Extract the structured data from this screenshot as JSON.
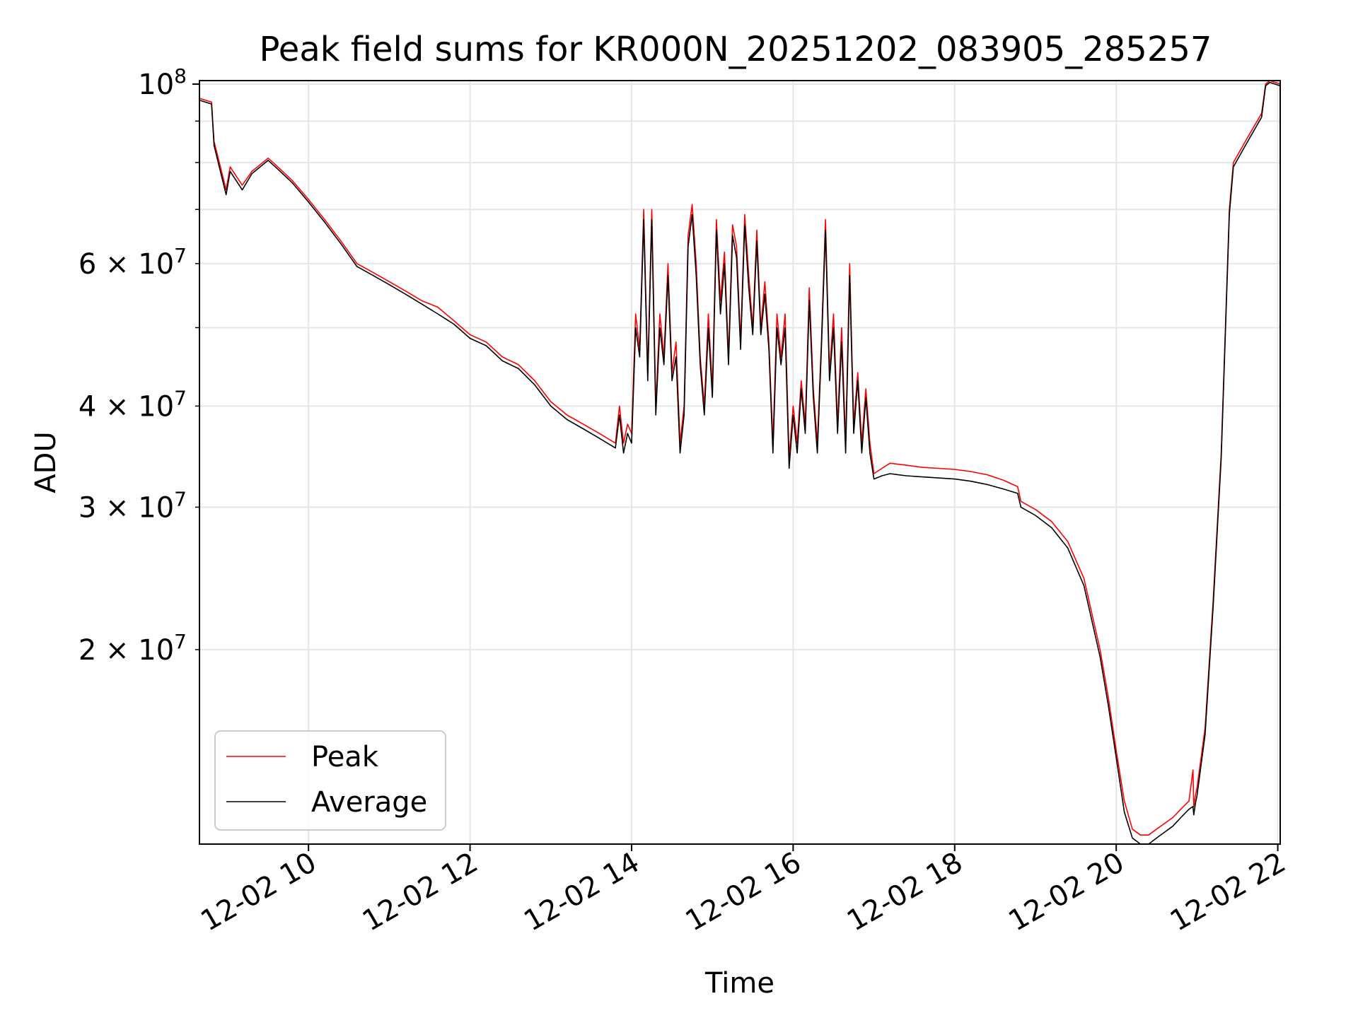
{
  "chart_data": {
    "type": "line",
    "title": "Peak field sums for KR000N_20251202_083905_285257",
    "xlabel": "Time",
    "ylabel": "ADU",
    "yscale": "log",
    "ylim": [
      11500000,
      101000000
    ],
    "xlim": [
      8.65,
      22.03
    ],
    "grid": true,
    "legend_position": "lower-left",
    "x_ticks": [
      {
        "value": 10,
        "label": "12-02 10"
      },
      {
        "value": 12,
        "label": "12-02 12"
      },
      {
        "value": 14,
        "label": "12-02 14"
      },
      {
        "value": 16,
        "label": "12-02 16"
      },
      {
        "value": 18,
        "label": "12-02 18"
      },
      {
        "value": 20,
        "label": "12-02 20"
      },
      {
        "value": 22,
        "label": "12-02 22"
      }
    ],
    "y_major_ticks": [
      {
        "value": 100000000,
        "base": "10",
        "exp": "8"
      }
    ],
    "y_minor_ticks": [
      {
        "value": 20000000,
        "mant": "2",
        "base": "10",
        "exp": "7"
      },
      {
        "value": 30000000,
        "mant": "3",
        "base": "10",
        "exp": "7"
      },
      {
        "value": 40000000,
        "mant": "4",
        "base": "10",
        "exp": "7"
      },
      {
        "value": 60000000,
        "mant": "6",
        "base": "10",
        "exp": "7"
      }
    ],
    "y_minor_unlabeled": [
      50000000,
      70000000,
      80000000,
      90000000
    ],
    "times_sym": "×",
    "series": [
      {
        "name": "Peak",
        "color": "#ff0000",
        "x": [
          8.65,
          8.8,
          8.83,
          8.98,
          9.03,
          9.18,
          9.3,
          9.5,
          9.62,
          9.8,
          10.0,
          10.2,
          10.4,
          10.6,
          10.8,
          11.0,
          11.2,
          11.4,
          11.6,
          11.8,
          12.0,
          12.2,
          12.4,
          12.6,
          12.8,
          13.0,
          13.2,
          13.4,
          13.6,
          13.8,
          13.85,
          13.9,
          13.95,
          14.0,
          14.05,
          14.1,
          14.15,
          14.2,
          14.25,
          14.3,
          14.35,
          14.4,
          14.45,
          14.5,
          14.55,
          14.6,
          14.65,
          14.7,
          14.75,
          14.8,
          14.85,
          14.9,
          14.95,
          15.0,
          15.05,
          15.1,
          15.15,
          15.2,
          15.25,
          15.3,
          15.35,
          15.4,
          15.45,
          15.5,
          15.55,
          15.6,
          15.65,
          15.7,
          15.75,
          15.8,
          15.85,
          15.9,
          15.95,
          16.0,
          16.05,
          16.1,
          16.15,
          16.2,
          16.25,
          16.3,
          16.35,
          16.4,
          16.45,
          16.5,
          16.55,
          16.6,
          16.65,
          16.7,
          16.75,
          16.8,
          16.85,
          16.9,
          16.95,
          17.0,
          17.1,
          17.2,
          17.4,
          17.6,
          17.8,
          18.0,
          18.2,
          18.4,
          18.6,
          18.78,
          18.82,
          19.0,
          19.2,
          19.4,
          19.6,
          19.8,
          19.9,
          20.0,
          20.1,
          20.2,
          20.3,
          20.4,
          20.5,
          20.6,
          20.7,
          20.8,
          20.9,
          20.95,
          20.96,
          20.98,
          21.0,
          21.1,
          21.2,
          21.3,
          21.4,
          21.45,
          21.6,
          21.8,
          21.85,
          21.9,
          22.03
        ],
        "y": [
          96000000,
          95000000,
          85000000,
          74000000,
          79000000,
          75000000,
          78000000,
          81000000,
          79000000,
          76000000,
          72000000,
          68000000,
          64000000,
          60000000,
          58500000,
          57000000,
          55500000,
          54000000,
          53000000,
          51000000,
          49000000,
          48000000,
          46000000,
          45000000,
          43000000,
          40500000,
          39000000,
          38000000,
          37000000,
          36000000,
          40000000,
          36000000,
          38000000,
          37000000,
          52000000,
          47000000,
          70000000,
          44000000,
          70000000,
          40000000,
          52000000,
          46000000,
          60000000,
          44000000,
          48000000,
          36000000,
          40000000,
          65000000,
          71000000,
          60000000,
          46000000,
          40000000,
          52000000,
          42000000,
          68000000,
          54000000,
          62000000,
          46000000,
          67000000,
          63000000,
          48000000,
          69000000,
          58000000,
          50000000,
          66000000,
          50000000,
          57000000,
          48000000,
          36000000,
          52000000,
          46000000,
          52000000,
          34500000,
          40000000,
          36000000,
          43000000,
          38000000,
          56000000,
          42000000,
          36000000,
          48000000,
          68000000,
          44000000,
          52000000,
          38000000,
          50000000,
          36000000,
          60000000,
          38000000,
          44000000,
          36000000,
          42000000,
          36000000,
          33000000,
          33500000,
          34000000,
          33800000,
          33600000,
          33500000,
          33400000,
          33200000,
          32900000,
          32400000,
          31800000,
          30500000,
          29800000,
          28800000,
          27200000,
          24500000,
          20000000,
          17500000,
          15000000,
          13000000,
          12000000,
          11800000,
          11800000,
          12000000,
          12200000,
          12400000,
          12700000,
          13000000,
          14200000,
          12800000,
          13200000,
          13500000,
          16000000,
          23000000,
          35000000,
          70000000,
          80000000,
          85000000,
          92000000,
          100000000,
          101000000,
          100000000
        ]
      },
      {
        "name": "Average",
        "color": "#000000",
        "x": [
          8.65,
          8.8,
          8.83,
          8.98,
          9.03,
          9.18,
          9.3,
          9.5,
          9.62,
          9.8,
          10.0,
          10.2,
          10.4,
          10.6,
          10.8,
          11.0,
          11.2,
          11.4,
          11.6,
          11.8,
          12.0,
          12.2,
          12.4,
          12.6,
          12.8,
          13.0,
          13.2,
          13.4,
          13.6,
          13.8,
          13.85,
          13.9,
          13.95,
          14.0,
          14.05,
          14.1,
          14.15,
          14.2,
          14.25,
          14.3,
          14.35,
          14.4,
          14.45,
          14.5,
          14.55,
          14.6,
          14.65,
          14.7,
          14.75,
          14.8,
          14.85,
          14.9,
          14.95,
          15.0,
          15.05,
          15.1,
          15.15,
          15.2,
          15.25,
          15.3,
          15.35,
          15.4,
          15.45,
          15.5,
          15.55,
          15.6,
          15.65,
          15.7,
          15.75,
          15.8,
          15.85,
          15.9,
          15.95,
          16.0,
          16.05,
          16.1,
          16.15,
          16.2,
          16.25,
          16.3,
          16.35,
          16.4,
          16.45,
          16.5,
          16.55,
          16.6,
          16.65,
          16.7,
          16.75,
          16.8,
          16.85,
          16.9,
          16.95,
          17.0,
          17.1,
          17.2,
          17.4,
          17.6,
          17.8,
          18.0,
          18.2,
          18.4,
          18.6,
          18.78,
          18.82,
          19.0,
          19.2,
          19.4,
          19.6,
          19.8,
          19.9,
          20.0,
          20.1,
          20.2,
          20.3,
          20.4,
          20.5,
          20.6,
          20.7,
          20.8,
          20.9,
          20.95,
          20.96,
          20.98,
          21.0,
          21.1,
          21.2,
          21.3,
          21.4,
          21.45,
          21.6,
          21.8,
          21.85,
          21.9,
          22.03
        ],
        "y": [
          95500000,
          94500000,
          84000000,
          73000000,
          78000000,
          74000000,
          77500000,
          80500000,
          78500000,
          75500000,
          71500000,
          67500000,
          63500000,
          59500000,
          58000000,
          56500000,
          55000000,
          53500000,
          52000000,
          50500000,
          48500000,
          47500000,
          45500000,
          44500000,
          42500000,
          40000000,
          38500000,
          37500000,
          36500000,
          35500000,
          39000000,
          35000000,
          37000000,
          36000000,
          50000000,
          46000000,
          68000000,
          43000000,
          68000000,
          39000000,
          50000000,
          45000000,
          58000000,
          43000000,
          46000000,
          35000000,
          39000000,
          63000000,
          69000000,
          58000000,
          45000000,
          39000000,
          50000000,
          41000000,
          66000000,
          52000000,
          60000000,
          45000000,
          65000000,
          61000000,
          47000000,
          67000000,
          56000000,
          49000000,
          64000000,
          49000000,
          55000000,
          47000000,
          35000000,
          50000000,
          45000000,
          50000000,
          33500000,
          39000000,
          35000000,
          42000000,
          37000000,
          54000000,
          41000000,
          35000000,
          47000000,
          66000000,
          43000000,
          50000000,
          37000000,
          48000000,
          35000000,
          58000000,
          37000000,
          43000000,
          35000000,
          41000000,
          35000000,
          32500000,
          32800000,
          33000000,
          32800000,
          32700000,
          32600000,
          32500000,
          32300000,
          32000000,
          31600000,
          31200000,
          30000000,
          29300000,
          28300000,
          26700000,
          24000000,
          19600000,
          17100000,
          14700000,
          12600000,
          11700000,
          11500000,
          11500000,
          11700000,
          11900000,
          12100000,
          12400000,
          12700000,
          12800000,
          12500000,
          12900000,
          13200000,
          15700000,
          22600000,
          34500000,
          69000000,
          79000000,
          84000000,
          91000000,
          99500000,
          100500000,
          99500000
        ]
      }
    ]
  }
}
